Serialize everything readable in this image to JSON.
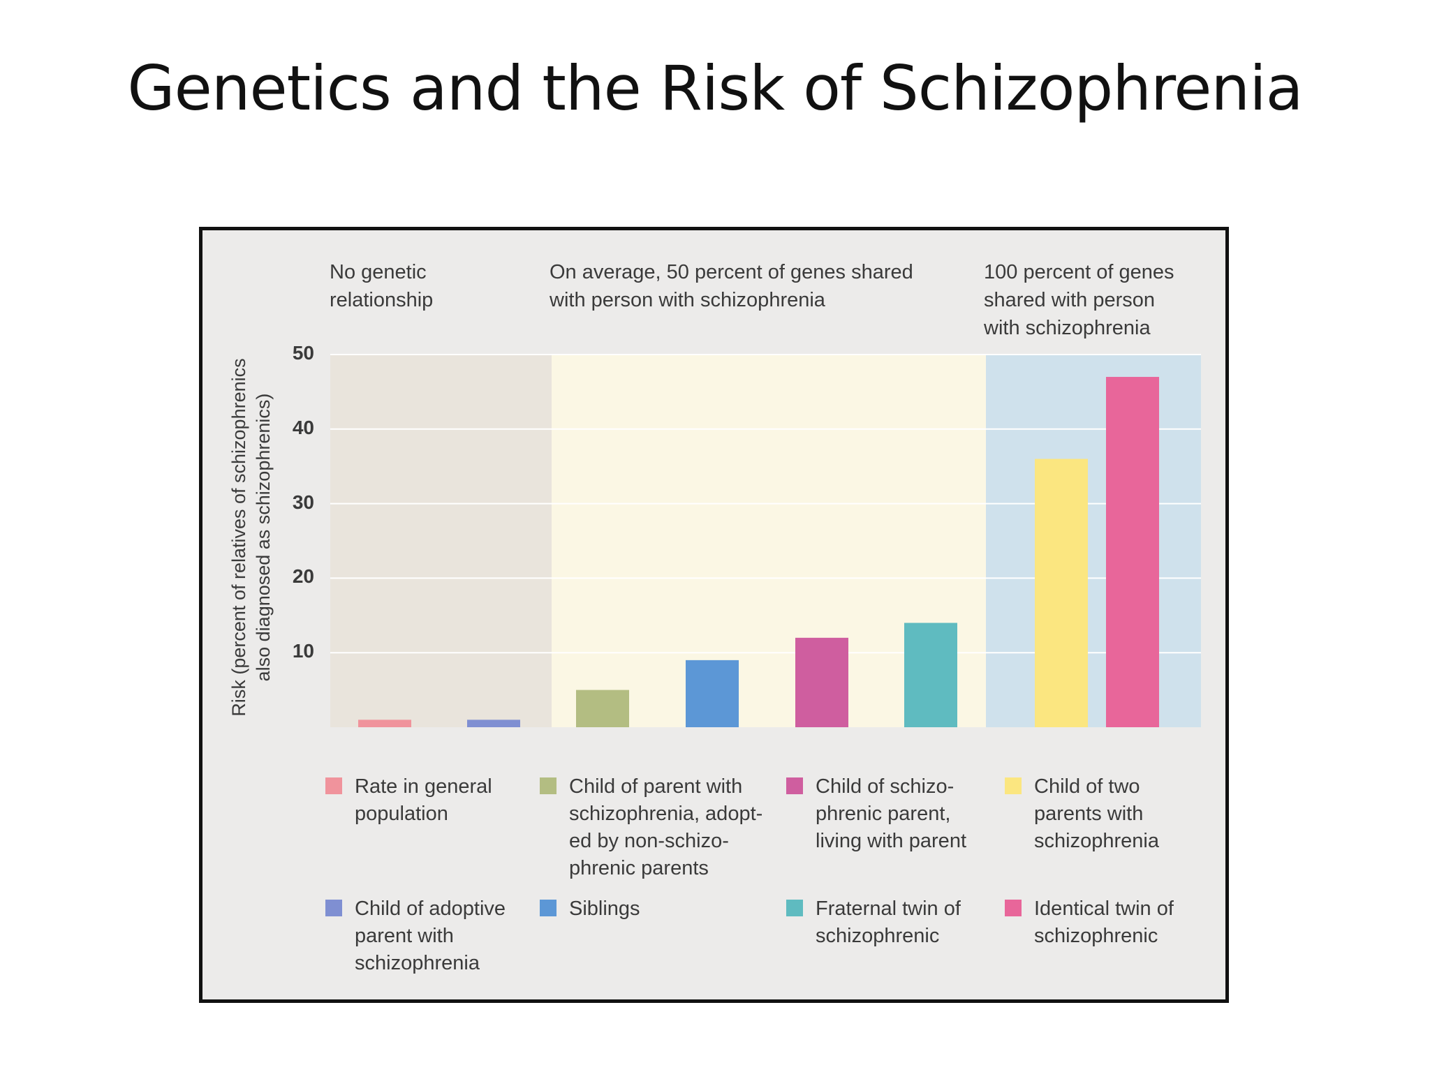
{
  "slide": {
    "title": "Genetics and the Risk of Schizophrenia"
  },
  "colors": {
    "band_none": "#e9e4dc",
    "band_fifty": "#fbf7e4",
    "band_hundred": "#cfe1ec",
    "gridline": "#ffffff"
  },
  "chart_data": {
    "type": "bar",
    "title": "",
    "xlabel": "",
    "ylabel": "Risk (percent of relatives of schizophrenics\nalso diagnosed as schizophrenics)",
    "ylim": [
      0,
      50
    ],
    "yticks": [
      "10",
      "20",
      "30",
      "40",
      "50"
    ],
    "grid": true,
    "groups": [
      {
        "label": "No genetic\nrelationship",
        "categories": [
          0,
          1
        ]
      },
      {
        "label": "On average, 50 percent of genes shared\nwith person with schizophrenia",
        "categories": [
          2,
          3,
          4,
          5
        ]
      },
      {
        "label": "100 percent of genes\nshared with person\nwith schizophrenia",
        "categories": [
          6,
          7
        ]
      }
    ],
    "categories": [
      "Rate in general\npopulation",
      "Child of adoptive\nparent with\nschizophrenia",
      "Child of parent with\nschizophrenia, adopt-\ned by non-schizo-\nphrenic parents",
      "Siblings",
      "Child of schizo-\nphrenic parent,\nliving with parent",
      "Fraternal twin of\nschizophrenic",
      "Child of two\nparents with\nschizophrenia",
      "Identical twin of\nschizophrenic"
    ],
    "values": [
      1,
      1,
      5,
      9,
      12,
      14,
      36,
      47
    ],
    "colors": [
      "#f0939c",
      "#7f8fd2",
      "#b3bd82",
      "#5c97d6",
      "#cf5e9f",
      "#5fbbc0",
      "#fbe680",
      "#e8669a"
    ]
  }
}
